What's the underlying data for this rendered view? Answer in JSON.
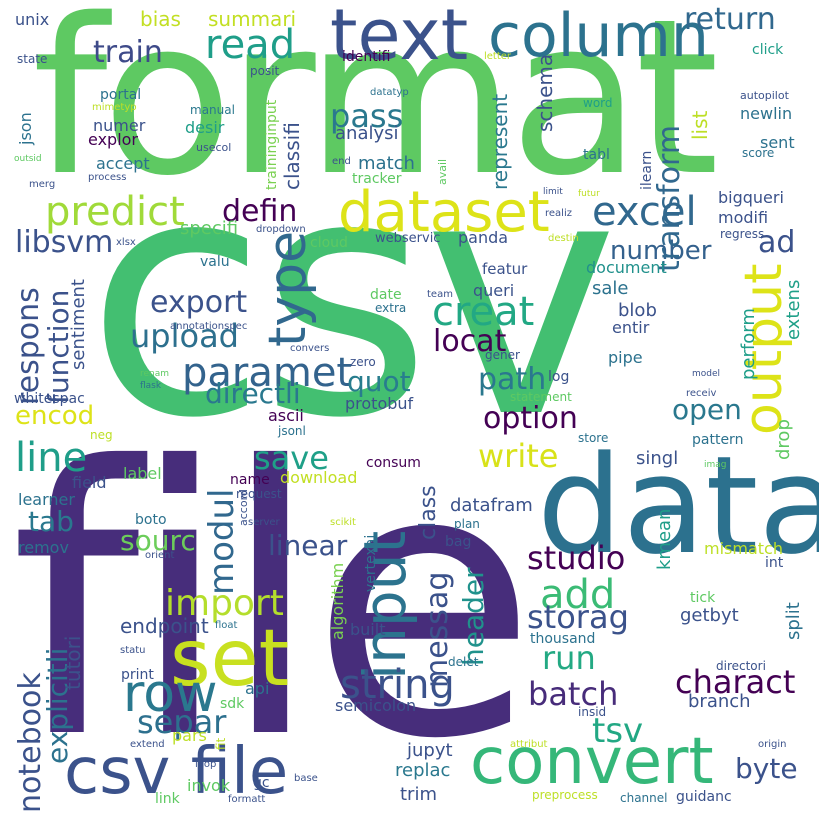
{
  "words": {
    "csv": "csv",
    "file": "file",
    "format": "format",
    "data": "data",
    "text": "text",
    "column": "column",
    "dataset": "dataset",
    "set": "set",
    "input": "input",
    "convert": "convert",
    "csv_file": "csv file",
    "row": "row",
    "excel": "excel",
    "output": "output",
    "predict": "predict",
    "type": "type",
    "paramet": "paramet",
    "creat": "creat",
    "read": "read",
    "string": "string",
    "line": "line",
    "add": "add",
    "import": "import",
    "batch": "batch",
    "upload": "upload",
    "export": "export",
    "pass": "pass",
    "studio": "studio",
    "charact": "charact",
    "locat": "locat",
    "path": "path",
    "transform": "transform",
    "train": "train",
    "return": "return",
    "modul": "modul",
    "save": "save",
    "write": "write",
    "separ": "separ",
    "storag": "storag",
    "run": "run",
    "tsv": "tsv",
    "option": "option",
    "number": "number",
    "defin": "defin",
    "messag": "messag",
    "notebook": "notebook",
    "respons": "respons",
    "libsvm": "libsvm",
    "quot": "quot",
    "directli": "directli",
    "header": "header",
    "open": "open",
    "byte": "byte",
    "linear": "linear",
    "sourc": "sourc",
    "function": "function",
    "explicitli": "explicitli",
    "encod": "encod",
    "tab": "tab",
    "class": "class",
    "bias": "bias",
    "summari": "summari",
    "ad": "ad",
    "endpoint": "endpoint",
    "jupyt": "jupyt",
    "replac": "replac",
    "trim": "trim",
    "semicolon": "semicolon",
    "datafram": "datafram",
    "download": "download",
    "analysi": "analysi",
    "match": "match",
    "represent": "represent",
    "schema": "schema",
    "blob": "blob",
    "entir": "entir",
    "sale": "sale",
    "document": "document",
    "queri": "queri",
    "featur": "featur",
    "panda": "panda",
    "webservic": "webservic",
    "cloud": "cloud",
    "specifi": "specifi",
    "modifi": "modifi",
    "bigqueri": "bigqueri",
    "regress": "regress",
    "sent": "sent",
    "score": "score",
    "newlin": "newlin",
    "click": "click",
    "autopilot": "autopilot",
    "list": "list",
    "word": "word",
    "tabl": "tabl",
    "ilearn": "ilearn",
    "futur": "futur",
    "limit": "limit",
    "realiz": "realiz",
    "destin": "destin",
    "classifi": "classifi",
    "usecol": "usecol",
    "desir": "desir",
    "manual": "manual",
    "posit": "posit",
    "identifi": "identifi",
    "datatyp": "datatyp",
    "traininginput": "traininginput",
    "letter": "letter",
    "avail": "avail",
    "tracker": "tracker",
    "end": "end",
    "numer": "numer",
    "explor": "explor",
    "accept": "accept",
    "portal": "portal",
    "mimetyp": "mimetyp",
    "json": "json",
    "state": "state",
    "unix": "unix",
    "outsid": "outsid",
    "merg": "merg",
    "process": "process",
    "xlsx": "xlsx",
    "dropdown": "dropdown",
    "valu": "valu",
    "date": "date",
    "extra": "extra",
    "team": "team",
    "sentiment": "sentiment",
    "annotationspec": "annotationspec",
    "convers": "convers",
    "renam": "renam",
    "flask": "flask",
    "zero": "zero",
    "log": "log",
    "gener": "gener",
    "pipe": "pipe",
    "perform": "perform",
    "extens": "extens",
    "whitespac": "whitespac",
    "protobuf": "protobuf",
    "statement": "statement",
    "receiv": "receiv",
    "model": "model",
    "drop": "drop",
    "pattern": "pattern",
    "store": "store",
    "neg": "neg",
    "ascii": "ascii",
    "jsonl": "jsonl",
    "consum": "consum",
    "singl": "singl",
    "imag": "imag",
    "label": "label",
    "name": "name",
    "request": "request",
    "learner": "learner",
    "field": "field",
    "boto": "boto",
    "remov": "remov",
    "server": "server",
    "scikit": "scikit",
    "accord": "accord",
    "plan": "plan",
    "bag": "bag",
    "kmean": "kmean",
    "mismatch": "mismatch",
    "orient": "orient",
    "int": "int",
    "vertexai": "vertexai",
    "algorithm": "algorithm",
    "built": "built",
    "tutori": "tutori",
    "float": "float",
    "tick": "tick",
    "getbyt": "getbyt",
    "split": "split",
    "thousand": "thousand",
    "delet": "delet",
    "statu": "statu",
    "print": "print",
    "sdk": "sdk",
    "api": "api",
    "directori": "directori",
    "insid": "insid",
    "branch": "branch",
    "pars": "pars",
    "extend": "extend",
    "fit": "fit",
    "loop": "loop",
    "invok": "invok",
    "gc": "gc",
    "base": "base",
    "attribut": "attribut",
    "origin": "origin",
    "link": "link",
    "formatt": "formatt",
    "preprocess": "preprocess",
    "channel": "channel",
    "guidanc": "guidanc"
  }
}
